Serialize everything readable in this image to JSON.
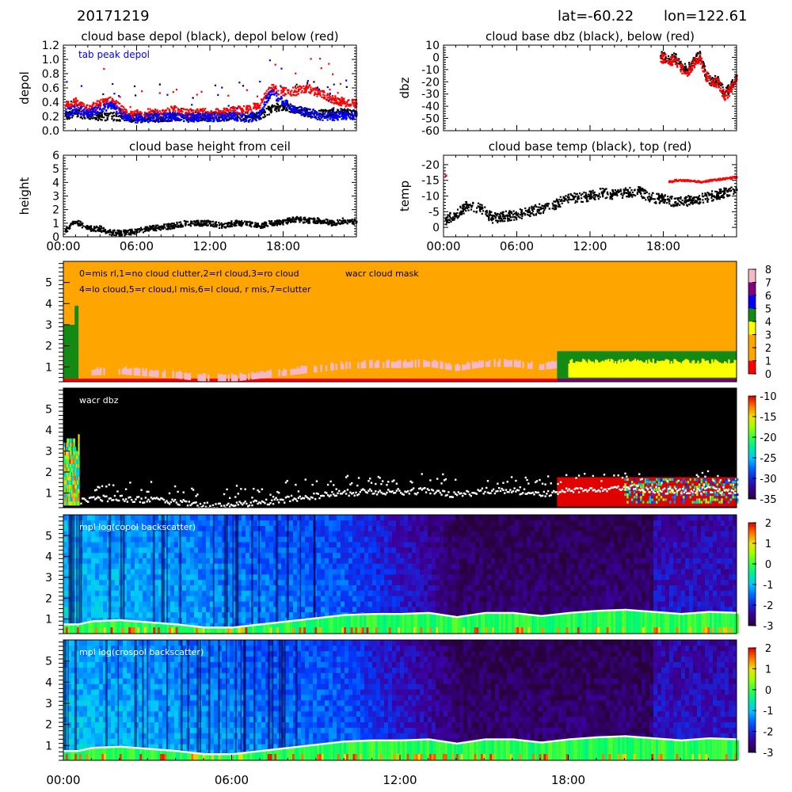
{
  "header": {
    "date": "20171219",
    "lat": "lat=-60.22",
    "lon": "lon=122.61"
  },
  "time_ticks": [
    "00:00",
    "06:00",
    "12:00",
    "18:00"
  ],
  "colors": {
    "red": "#ff0000",
    "blue": "#0000ff",
    "black": "#000000",
    "orange": "#ffa500",
    "pink": "#f4b8c8",
    "green": "#138a13",
    "yellow": "#ffff00",
    "purple": "#800080",
    "cyan": "#00ffff",
    "magenta": "#ff00ff"
  },
  "chart_data": [
    {
      "id": "depol",
      "type": "scatter",
      "title": "cloud base depol (black), depol below (red)",
      "ylabel": "depol",
      "xlim": [
        0,
        24
      ],
      "ylim": [
        0,
        1.2
      ],
      "yticks": [
        "0.0",
        "0.2",
        "0.4",
        "0.6",
        "0.8",
        "1.0",
        "1.2"
      ],
      "annotation": "tab peak depol",
      "series": [
        {
          "name": "cloud base depol",
          "color": "#000000",
          "x": [
            0.2,
            1.0,
            2.0,
            3.0,
            4.0,
            5.0,
            6.0,
            7.0,
            8.0,
            9.0,
            10.0,
            11.0,
            12.0,
            13.0,
            14.0,
            15.0,
            16.0,
            17.0,
            18.0,
            19.0,
            20.0,
            21.0,
            22.0,
            23.0,
            24.0
          ],
          "y": [
            0.22,
            0.24,
            0.22,
            0.2,
            0.2,
            0.19,
            0.18,
            0.18,
            0.19,
            0.19,
            0.2,
            0.2,
            0.2,
            0.2,
            0.2,
            0.2,
            0.21,
            0.3,
            0.35,
            0.3,
            0.24,
            0.24,
            0.25,
            0.25,
            0.24
          ]
        },
        {
          "name": "depol below",
          "color": "#ff0000",
          "x": [
            0.2,
            1.0,
            2.0,
            3.0,
            4.0,
            5.0,
            6.0,
            7.0,
            8.0,
            9.0,
            10.0,
            11.0,
            12.0,
            13.0,
            14.0,
            15.0,
            16.0,
            17.0,
            18.0,
            19.0,
            20.0,
            21.0,
            22.0,
            23.0,
            24.0
          ],
          "y": [
            0.35,
            0.4,
            0.3,
            0.38,
            0.42,
            0.26,
            0.23,
            0.25,
            0.24,
            0.3,
            0.24,
            0.25,
            0.25,
            0.25,
            0.28,
            0.3,
            0.35,
            0.6,
            0.55,
            0.55,
            0.6,
            0.52,
            0.45,
            0.4,
            0.38
          ]
        },
        {
          "name": "tab peak depol",
          "color": "#0000ff",
          "x": [
            0.2,
            1.0,
            2.0,
            3.0,
            4.0,
            5.0,
            6.0,
            7.0,
            8.0,
            9.0,
            10.0,
            11.0,
            12.0,
            13.0,
            14.0,
            15.0,
            16.0,
            17.0,
            18.0,
            19.0,
            20.0,
            21.0,
            22.0,
            23.0,
            24.0
          ],
          "y": [
            0.25,
            0.3,
            0.25,
            0.3,
            0.35,
            0.2,
            0.17,
            0.18,
            0.18,
            0.2,
            0.18,
            0.19,
            0.19,
            0.19,
            0.2,
            0.18,
            0.2,
            0.55,
            0.4,
            0.3,
            0.25,
            0.2,
            0.2,
            0.22,
            0.22
          ]
        }
      ]
    },
    {
      "id": "dbz",
      "type": "scatter",
      "title": "cloud base dbz (black), below (red)",
      "ylabel": "dbz",
      "xlim": [
        0,
        24
      ],
      "ylim": [
        -60,
        10
      ],
      "yticks": [
        "-60",
        "-50",
        "-40",
        "-30",
        "-20",
        "-10",
        "0",
        "10"
      ],
      "series": [
        {
          "name": "cloud base dbz",
          "color": "#000000",
          "x": [
            17.8,
            18.5,
            19.0,
            19.5,
            20.0,
            20.5,
            21.0,
            21.5,
            22.0,
            22.5,
            23.0,
            23.5,
            24.0
          ],
          "y": [
            1,
            -2,
            0,
            -8,
            -10,
            -2,
            1,
            -14,
            -20,
            -18,
            -30,
            -25,
            -15
          ]
        },
        {
          "name": "below",
          "color": "#ff0000",
          "x": [
            17.8,
            18.5,
            19.0,
            19.5,
            20.0,
            20.5,
            21.0,
            21.5,
            22.0,
            22.5,
            23.0,
            23.5,
            24.0
          ],
          "y": [
            0,
            -3,
            -2,
            -10,
            -12,
            -5,
            0,
            -15,
            -22,
            -20,
            -32,
            -27,
            -18
          ]
        }
      ]
    },
    {
      "id": "height",
      "type": "scatter",
      "title": "cloud base height from ceil",
      "ylabel": "height",
      "xlim": [
        0,
        24
      ],
      "ylim": [
        0,
        6
      ],
      "yticks": [
        "0",
        "1",
        "2",
        "3",
        "4",
        "5",
        "6"
      ],
      "series": [
        {
          "name": "cloud base height",
          "color": "#000000",
          "x": [
            0.2,
            1.0,
            1.5,
            2.0,
            3.0,
            4.0,
            5.0,
            6.0,
            7.0,
            8.0,
            9.0,
            10.0,
            11.0,
            12.0,
            13.0,
            14.0,
            15.0,
            16.0,
            17.0,
            18.0,
            19.0,
            20.0,
            21.0,
            22.0,
            23.0,
            24.0
          ],
          "y": [
            0.5,
            1.1,
            0.9,
            0.6,
            0.6,
            0.3,
            0.3,
            0.4,
            0.6,
            0.7,
            0.8,
            1.0,
            1.0,
            1.0,
            0.8,
            1.0,
            1.0,
            0.8,
            1.0,
            1.1,
            1.3,
            1.2,
            1.2,
            1.0,
            1.2,
            1.1
          ]
        }
      ]
    },
    {
      "id": "temp",
      "type": "scatter",
      "title": "cloud base temp (black), top (red)",
      "ylabel": "temp",
      "xlim": [
        0,
        24
      ],
      "ylim": [
        3,
        -23
      ],
      "yticks": [
        "0",
        "-5",
        "-10",
        "-15",
        "-20"
      ],
      "series": [
        {
          "name": "cloud base temp",
          "color": "#000000",
          "x": [
            0.2,
            1.0,
            2.0,
            3.0,
            4.0,
            5.0,
            6.0,
            7.0,
            8.0,
            9.0,
            10.0,
            11.0,
            12.0,
            13.0,
            14.0,
            15.0,
            16.0,
            17.0,
            18.0,
            19.0,
            20.0,
            21.0,
            22.0,
            23.0,
            24.0
          ],
          "y": [
            -2.5,
            -4.0,
            -7.0,
            -6.0,
            -3.0,
            -3.5,
            -4.0,
            -5.0,
            -6.0,
            -7.0,
            -9.0,
            -9.5,
            -10.0,
            -11.0,
            -10.5,
            -11.0,
            -11.5,
            -9.5,
            -9.0,
            -8.0,
            -8.5,
            -9.0,
            -10.0,
            -11.0,
            -12.0
          ]
        },
        {
          "name": "top",
          "color": "#ff0000",
          "x": [
            0.2,
            18.5,
            19.0,
            20.0,
            21.0,
            22.0,
            23.0,
            24.0
          ],
          "y": [
            -16.5,
            -14.5,
            -15.0,
            -15.0,
            -14.5,
            -15.0,
            -15.5,
            -16.0
          ]
        }
      ]
    },
    {
      "id": "wacr_mask",
      "type": "heatmap",
      "title": "wacr cloud mask",
      "legend_text": [
        "0=mis rl,1=no cloud clutter,2=rl cloud,3=ro cloud",
        "4=lo cloud,5=r cloud,l mis,6=l cloud, r mis,7=clutter"
      ],
      "xlim": [
        0,
        24
      ],
      "ylim": [
        0.3,
        6.0
      ],
      "yticks": [
        "1",
        "2",
        "3",
        "4",
        "5"
      ],
      "colorbar": {
        "min": 0,
        "max": 8,
        "ticks": [
          "0",
          "1",
          "2",
          "3",
          "4",
          "5",
          "6",
          "7",
          "8"
        ],
        "colors": [
          "#ff0000",
          "#ffa500",
          "#ffa500",
          "#ffff00",
          "#138a13",
          "#0000ff",
          "#800080",
          "#f4b8c8",
          "#00ffff"
        ]
      }
    },
    {
      "id": "wacr_dbz",
      "type": "heatmap",
      "title": "wacr dbz",
      "xlim": [
        0,
        24
      ],
      "ylim": [
        0.3,
        6.0
      ],
      "yticks": [
        "1",
        "2",
        "3",
        "4",
        "5"
      ],
      "colorbar": {
        "min": -35,
        "max": -10,
        "ticks": [
          "-35",
          "-30",
          "-25",
          "-20",
          "-15",
          "-10"
        ]
      }
    },
    {
      "id": "mpl_copol",
      "type": "heatmap",
      "title": "mpl log(copol backscatter)",
      "xlim": [
        0,
        24
      ],
      "ylim": [
        0.3,
        6.0
      ],
      "yticks": [
        "1",
        "2",
        "3",
        "4",
        "5"
      ],
      "colorbar": {
        "min": -3,
        "max": 2,
        "ticks": [
          "-3",
          "-2",
          "-1",
          "0",
          "1",
          "2"
        ]
      }
    },
    {
      "id": "mpl_crospol",
      "type": "heatmap",
      "title": "mpl log(crospol backscatter)",
      "xlim": [
        0,
        24
      ],
      "ylim": [
        0.3,
        6.0
      ],
      "yticks": [
        "1",
        "2",
        "3",
        "4",
        "5"
      ],
      "colorbar": {
        "min": -3,
        "max": 2,
        "ticks": [
          "-3",
          "-2",
          "-1",
          "0",
          "1",
          "2"
        ]
      }
    }
  ]
}
